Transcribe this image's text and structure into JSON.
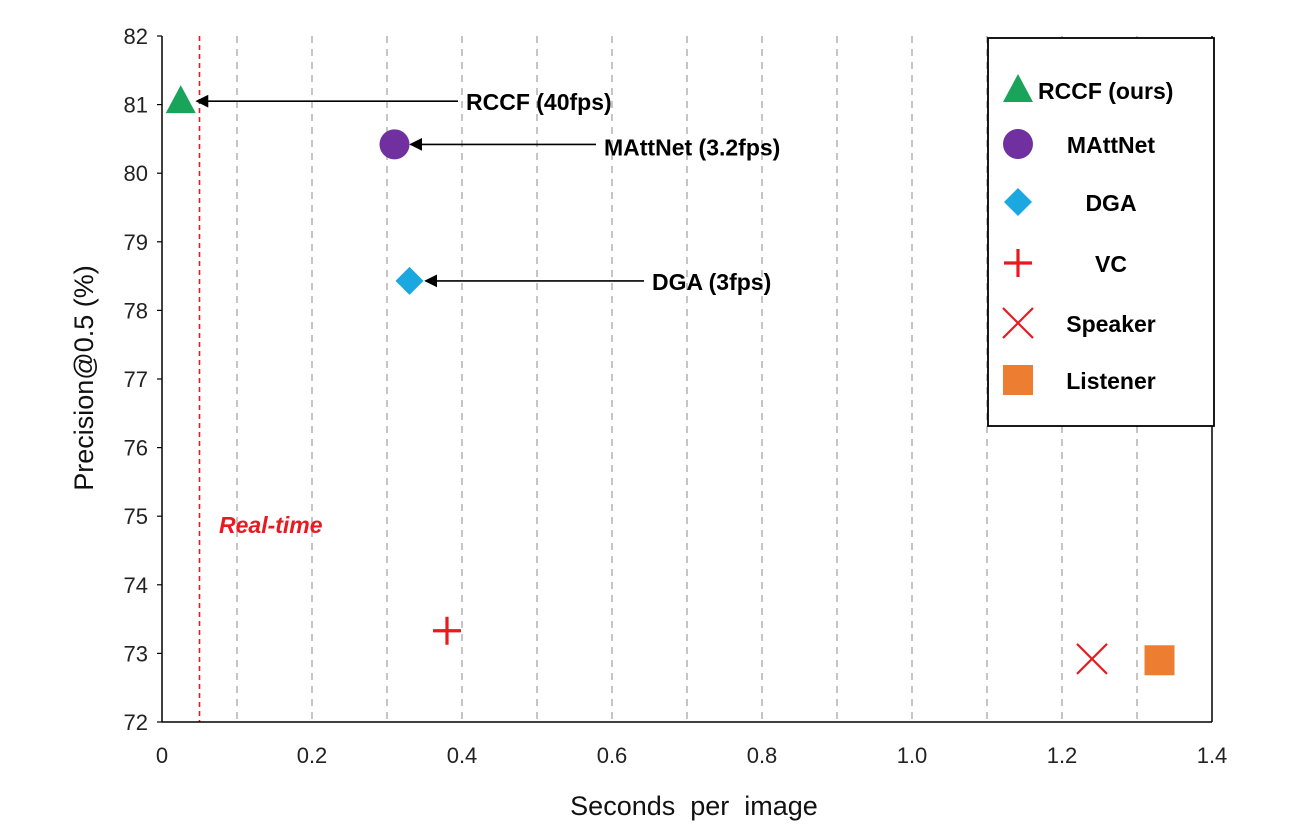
{
  "chart_data": {
    "type": "scatter",
    "xlabel": "Seconds  per  image",
    "ylabel": "Precision@0.5 (%)",
    "xlim": [
      0,
      1.4
    ],
    "ylim": [
      72,
      82
    ],
    "x_ticks": [
      "0",
      "0.2",
      "0.4",
      "0.6",
      "0.8",
      "1.0",
      "1.2",
      "1.4"
    ],
    "y_ticks": [
      "72",
      "73",
      "74",
      "75",
      "76",
      "77",
      "78",
      "79",
      "80",
      "81",
      "82"
    ],
    "vertical_grid_x": [
      0.1,
      0.2,
      0.3,
      0.4,
      0.5,
      0.6,
      0.7,
      0.8,
      0.9,
      1.0,
      1.1,
      1.2,
      1.3
    ],
    "grid": "vertical dashed",
    "realtime": {
      "x": 0.05,
      "label": "Real-time",
      "color": "#e8191f"
    },
    "series": [
      {
        "name": "RCCF (ours)",
        "marker": "triangle",
        "color": "#1aa35a",
        "x": 0.025,
        "y": 81.05,
        "annotation": "RCCF (40fps)"
      },
      {
        "name": "MAttNet",
        "marker": "circle",
        "color": "#7030a0",
        "x": 0.31,
        "y": 80.42,
        "annotation": "MAttNet (3.2fps)"
      },
      {
        "name": "DGA",
        "marker": "diamond",
        "color": "#1ba7e0",
        "x": 0.33,
        "y": 78.43,
        "annotation": "DGA (3fps)"
      },
      {
        "name": "VC",
        "marker": "plus",
        "color": "#e8191f",
        "x": 0.38,
        "y": 73.33
      },
      {
        "name": "Speaker",
        "marker": "x",
        "color": "#e8191f",
        "x": 1.24,
        "y": 72.92
      },
      {
        "name": "Listener",
        "marker": "square",
        "color": "#ed7d31",
        "x": 1.33,
        "y": 72.9
      }
    ],
    "legend_position": "top-right"
  }
}
